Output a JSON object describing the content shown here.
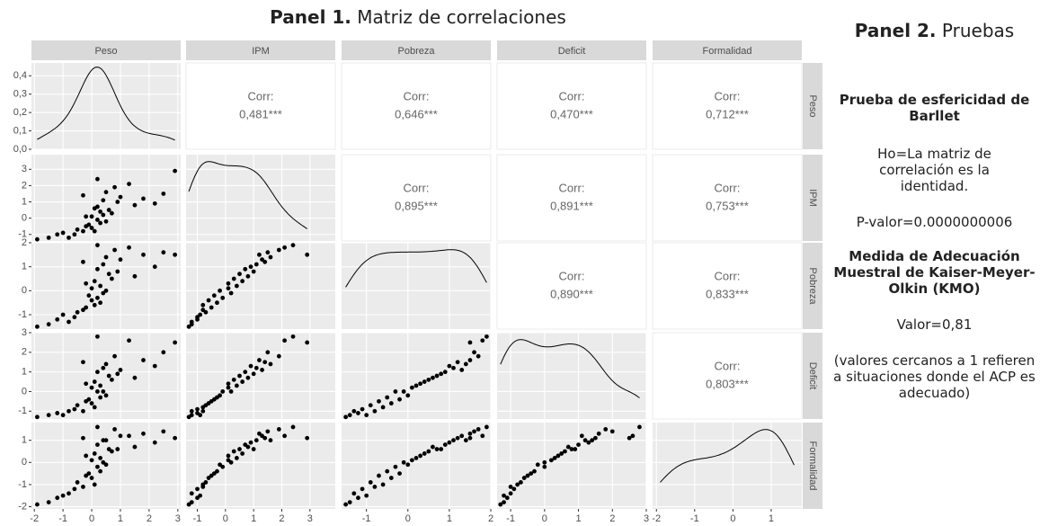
{
  "chart_data": {
    "type": "pairs",
    "title_label": "Panel 1.",
    "title": "Matriz de correlaciones",
    "corr_label": "Corr:",
    "variables": [
      {
        "name": "Peso",
        "lim": [
          -2.1,
          3.1
        ],
        "ticks": [
          -2,
          -1,
          0,
          1,
          2,
          3
        ],
        "values": [
          -1.9,
          -1.5,
          -1.2,
          -0.8,
          -1.0,
          -0.6,
          -0.3,
          -0.5,
          0.1,
          -0.2,
          0,
          0.3,
          -0.1,
          0.2,
          0.5,
          0,
          0.4,
          -0.2,
          0.3,
          0.7,
          0.1,
          0.6,
          1.5,
          0.2,
          0.9,
          0.4,
          2.2,
          1.0,
          -0.3,
          1.8,
          0.5,
          2.5,
          0.8,
          1.3,
          0.2,
          2.9
        ]
      },
      {
        "name": "IPM",
        "lim": [
          -1.4,
          3.9
        ],
        "ticks": [
          -1,
          0,
          1,
          2,
          3
        ],
        "values": [
          -1.3,
          -1.2,
          -1.0,
          -1.2,
          -0.9,
          -1.0,
          -0.8,
          -0.7,
          -0.8,
          -0.5,
          -0.6,
          -0.3,
          -0.4,
          -0.1,
          -0.2,
          0.1,
          0.2,
          0.1,
          0.4,
          0.3,
          0.6,
          0.5,
          0.8,
          0.7,
          1.0,
          1.1,
          0.9,
          1.3,
          1.4,
          1.2,
          1.6,
          1.5,
          1.9,
          2.1,
          2.4,
          2.9
        ]
      },
      {
        "name": "Pobreza",
        "lim": [
          -1.6,
          2.0
        ],
        "ticks": [
          -1,
          0,
          1,
          2
        ],
        "values": [
          -1.5,
          -1.4,
          -1.2,
          -1.3,
          -1.0,
          -1.1,
          -0.8,
          -0.9,
          -0.6,
          -0.7,
          -0.4,
          -0.5,
          -0.2,
          -0.3,
          0.0,
          0.1,
          -0.1,
          0.3,
          0.2,
          0.5,
          0.4,
          0.7,
          0.6,
          0.9,
          0.8,
          1.1,
          1.0,
          1.3,
          1.2,
          1.5,
          1.4,
          1.6,
          1.7,
          1.8,
          1.9,
          1.5
        ]
      },
      {
        "name": "Deficit",
        "lim": [
          -1.4,
          3.0
        ],
        "ticks": [
          -1,
          0,
          1,
          2,
          3
        ],
        "values": [
          -1.3,
          -1.2,
          -1.1,
          -1.0,
          -1.2,
          -0.9,
          -1.0,
          -0.7,
          -0.8,
          -0.5,
          -0.6,
          -0.3,
          -0.4,
          0.0,
          -0.2,
          0.2,
          0.0,
          0.4,
          0.3,
          0.6,
          0.5,
          0.8,
          0.7,
          1.0,
          0.9,
          1.2,
          1.3,
          1.1,
          1.5,
          1.6,
          1.4,
          2.0,
          1.8,
          2.6,
          2.8,
          2.5
        ]
      },
      {
        "name": "Formalidad",
        "lim": [
          -2.1,
          1.8
        ],
        "ticks": [
          -2,
          -1,
          0,
          1
        ],
        "values": [
          -1.9,
          -1.8,
          -1.6,
          -1.4,
          -1.5,
          -1.2,
          -1.1,
          -0.9,
          -1.0,
          -0.6,
          -0.7,
          -0.4,
          -0.5,
          -0.2,
          -0.1,
          0.1,
          0.0,
          0.3,
          0.2,
          0.5,
          0.4,
          0.6,
          0.7,
          0.8,
          0.6,
          1.0,
          0.9,
          1.2,
          1.1,
          1.3,
          1.0,
          1.4,
          1.5,
          1.2,
          1.6,
          1.1
        ]
      }
    ],
    "density_ylim": [
      0,
      0.47
    ],
    "density_yticks": [
      {
        "value": 0,
        "label": "0,0"
      },
      {
        "value": 0.1,
        "label": "0,1"
      },
      {
        "value": 0.2,
        "label": "0,2"
      },
      {
        "value": 0.3,
        "label": "0,3"
      },
      {
        "value": 0.4,
        "label": "0,4"
      }
    ],
    "correlations": [
      [
        0.481,
        0.646,
        0.47,
        0.712
      ],
      [
        0.895,
        0.891,
        0.753
      ],
      [
        0.89,
        0.833
      ],
      [
        0.803
      ]
    ],
    "correlation_labels": [
      [
        "0,481***",
        "0,646***",
        "0,470***",
        "0,712***"
      ],
      [
        "0,895***",
        "0,891***",
        "0,753***"
      ],
      [
        "0,890***",
        "0,833***"
      ],
      [
        "0,803***"
      ]
    ],
    "point_color": "#000000",
    "grid": true
  },
  "panel2": {
    "title_label": "Panel 2.",
    "title": "Pruebas",
    "heading1": "Prueba de esfericidad de Barllet",
    "text1": "Ho=La matriz de correlación es la identidad.",
    "text2": "P-valor=0.0000000006",
    "heading2": "Medida de Adecuación Muestral de Kaiser-Meyer-Olkin (KMO)",
    "text3": "Valor=0,81",
    "text4": "(valores cercanos a 1 refieren a situaciones donde el ACP es adecuado)"
  }
}
